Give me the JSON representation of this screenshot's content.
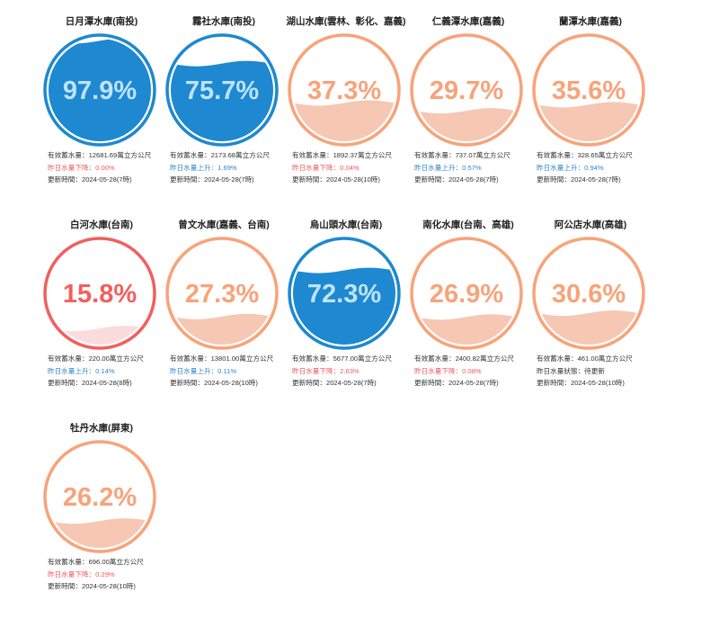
{
  "labels": {
    "storage_prefix": "有效蓄水量：",
    "storage_unit": "萬立方公尺",
    "updated_prefix": "更新時間："
  },
  "colors": {
    "blue": "#1e88d0",
    "blue_light": "#5cb6ee",
    "orange": "#f8a37a",
    "orange_fill": "#f6c7b3",
    "red": "#f0605e",
    "red_fill": "#fbdcdc"
  },
  "reservoirs": [
    {
      "name": "日月潭水庫(南投)",
      "percent_text": "97.9%",
      "percent": 97.9,
      "level": "blue",
      "storage": "12681.69",
      "change_text": "昨日水量下降：0.00%",
      "trend": "down",
      "updated": "2024-05-28(7時)"
    },
    {
      "name": "霧社水庫(南投)",
      "percent_text": "75.7%",
      "percent": 75.7,
      "level": "blue",
      "storage": "2173.68",
      "change_text": "昨日水量上升：1.69%",
      "trend": "up",
      "updated": "2024-05-28(7時)"
    },
    {
      "name": "湖山水庫(雲林、彰化、嘉義)",
      "percent_text": "37.3%",
      "percent": 37.3,
      "level": "orange",
      "storage": "1892.37",
      "change_text": "昨日水量下降：0.04%",
      "trend": "down",
      "updated": "2024-05-28(10時)"
    },
    {
      "name": "仁義潭水庫(嘉義)",
      "percent_text": "29.7%",
      "percent": 29.7,
      "level": "orange",
      "storage": "737.07",
      "change_text": "昨日水量上升：0.57%",
      "trend": "up",
      "updated": "2024-05-28(7時)"
    },
    {
      "name": "蘭潭水庫(嘉義)",
      "percent_text": "35.6%",
      "percent": 35.6,
      "level": "orange",
      "storage": "328.65",
      "change_text": "昨日水量上升：0.94%",
      "trend": "up",
      "updated": "2024-05-28(7時)"
    },
    {
      "name": "白河水庫(台南)",
      "percent_text": "15.8%",
      "percent": 15.8,
      "level": "red",
      "storage": "220.00",
      "change_text": "昨日水量上升：0.14%",
      "trend": "up",
      "updated": "2024-05-28(8時)"
    },
    {
      "name": "曾文水庫(嘉義、台南)",
      "percent_text": "27.3%",
      "percent": 27.3,
      "level": "orange",
      "storage": "13801.00",
      "change_text": "昨日水量上升：0.11%",
      "trend": "up",
      "updated": "2024-05-28(10時)"
    },
    {
      "name": "烏山頭水庫(台南)",
      "percent_text": "72.3%",
      "percent": 72.3,
      "level": "blue",
      "storage": "5677.00",
      "change_text": "昨日水量下降：2.63%",
      "trend": "down",
      "updated": "2024-05-28(7時)"
    },
    {
      "name": "南化水庫(台南、高雄)",
      "percent_text": "26.9%",
      "percent": 26.9,
      "level": "orange",
      "storage": "2400.82",
      "change_text": "昨日水量下降：0.08%",
      "trend": "down",
      "updated": "2024-05-28(7時)"
    },
    {
      "name": "阿公店水庫(高雄)",
      "percent_text": "30.6%",
      "percent": 30.6,
      "level": "orange",
      "storage": "461.00",
      "change_text": "昨日水量狀態：待更新",
      "trend": "neutral",
      "updated": "2024-05-28(10時)"
    },
    {
      "name": "牡丹水庫(屏東)",
      "percent_text": "26.2%",
      "percent": 26.2,
      "level": "orange",
      "storage": "696.00",
      "change_text": "昨日水量下降：0.29%",
      "trend": "down",
      "updated": "2024-05-28(10時)"
    }
  ]
}
